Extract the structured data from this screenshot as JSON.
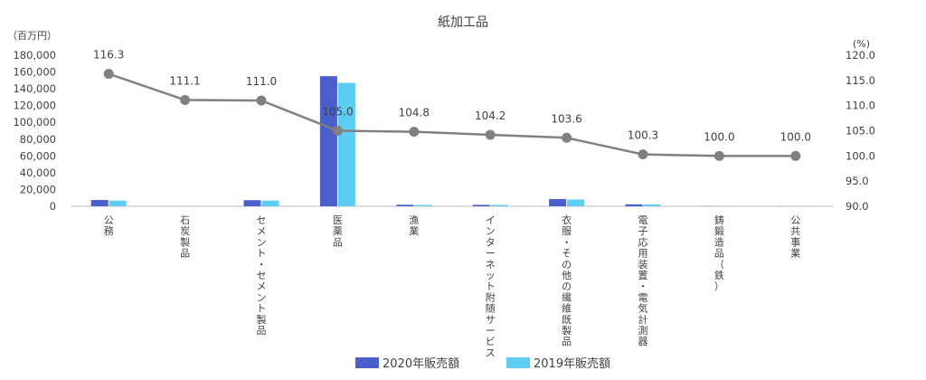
{
  "chart_data": {
    "type": "bar+line",
    "title": "紙加工品",
    "left_axis_unit": "（百万円）",
    "right_axis_unit": "(%)",
    "categories": [
      "公務",
      "石炭製品",
      "セメント・セメント製品",
      "医薬品",
      "漁業",
      "インターネット附随サービス",
      "衣服・その他の繊維既製品",
      "電子応用装置・電気計測器",
      "鋳鍛造品（鉄）",
      "公共事業"
    ],
    "left_ticks": [
      "0",
      "20,000",
      "40,000",
      "60,000",
      "80,000",
      "100,000",
      "120,000",
      "140,000",
      "160,000",
      "180,000"
    ],
    "right_ticks": [
      "90.0",
      "95.0",
      "100.0",
      "105.0",
      "110.0",
      "115.0",
      "120.0"
    ],
    "ylim_left": [
      0,
      180000
    ],
    "ylim_right": [
      90,
      120
    ],
    "bar_series": [
      {
        "name": "2020年販売額",
        "color": "#4a5fc9",
        "values": [
          7500,
          100,
          7300,
          155000,
          1800,
          1700,
          8600,
          2300,
          150,
          120
        ]
      },
      {
        "name": "2019年販売額",
        "color": "#5dcdf3",
        "values": [
          6800,
          100,
          6800,
          147000,
          1600,
          1600,
          8100,
          2100,
          150,
          120
        ]
      }
    ],
    "line_series": {
      "color": "#808080",
      "values": [
        116.3,
        111.1,
        111.0,
        105.0,
        104.8,
        104.2,
        103.6,
        100.3,
        100.0,
        100.0
      ],
      "labels": [
        "116.3",
        "111.1",
        "111.0",
        "105.0",
        "104.8",
        "104.2",
        "103.6",
        "100.3",
        "100.0",
        "100.0"
      ]
    },
    "legend_position": "bottom-center"
  }
}
